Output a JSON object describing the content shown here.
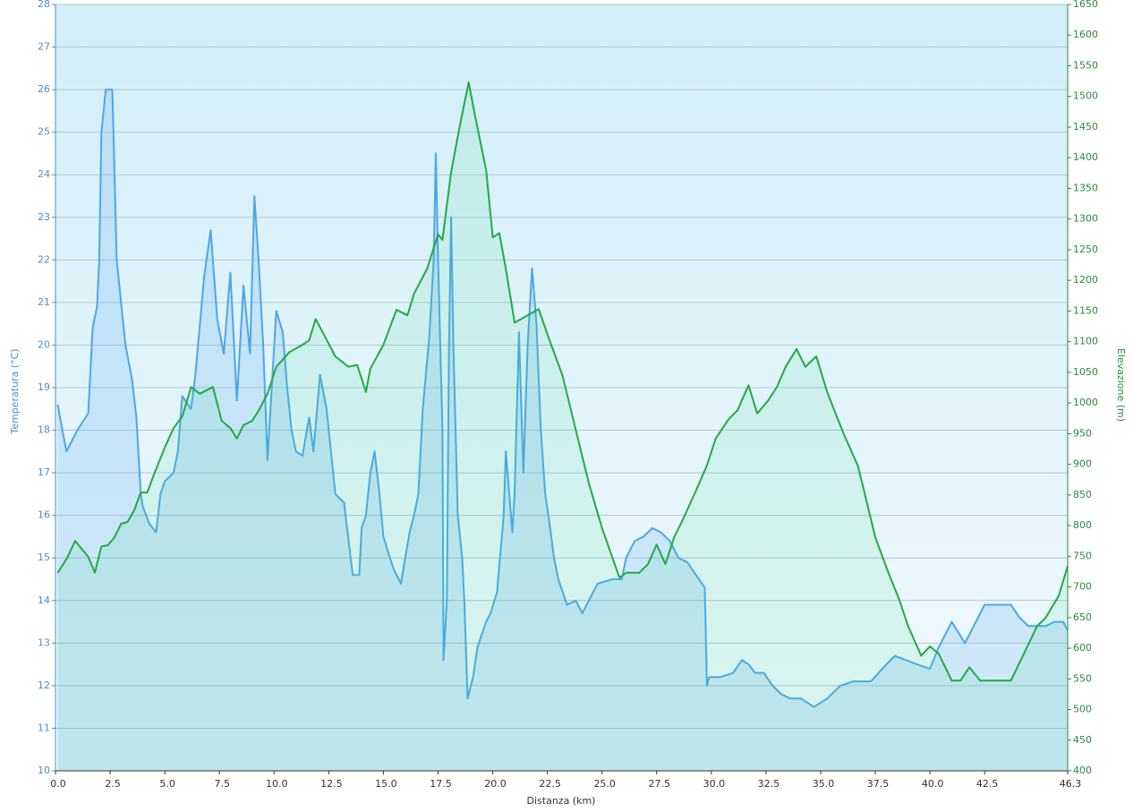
{
  "chart_data": {
    "type": "line",
    "xlabel": "Distanza  (km)",
    "ylabel": "Temperatura (°C)",
    "y2label": "Elevazione (m)",
    "xlim": [
      0,
      46.3
    ],
    "xticks": [
      {
        "value": 0,
        "label": "0.0"
      },
      2.5,
      {
        "value": 5,
        "label": "5.0"
      },
      7.5,
      {
        "value": 10,
        "label": "10.0"
      },
      12.5,
      {
        "value": 15,
        "label": "15.0"
      },
      17.5,
      {
        "value": 20,
        "label": "20.0"
      },
      22.5,
      {
        "value": 25,
        "label": "25.0"
      },
      27.5,
      {
        "value": 30,
        "label": "30.0"
      },
      32.5,
      {
        "value": 35,
        "label": "35.0"
      },
      37.5,
      {
        "value": 40,
        "label": "40.0"
      },
      42.5,
      46.3
    ],
    "ylim": [
      10,
      28
    ],
    "yticks": [
      10,
      11,
      12,
      13,
      14,
      15,
      16,
      17,
      18,
      19,
      20,
      21,
      22,
      23,
      24,
      25,
      26,
      27,
      28
    ],
    "y2lim": [
      400,
      1650
    ],
    "y2ticks": [
      400,
      450,
      500,
      550,
      600,
      650,
      700,
      750,
      800,
      850,
      900,
      950,
      1000,
      1050,
      1100,
      1150,
      1200,
      1250,
      1300,
      1350,
      1400,
      1450,
      1500,
      1550,
      1600,
      1650
    ],
    "grid": true,
    "series": [
      {
        "name": "Temperatura",
        "color": "#4da6e8",
        "fill": "rgba(110,180,240,0.25)",
        "x": [
          0.1,
          0.5,
          1.0,
          1.5,
          1.7,
          1.9,
          2.0,
          2.1,
          2.3,
          2.6,
          2.7,
          2.8,
          3.0,
          3.2,
          3.5,
          3.7,
          3.9,
          4.0,
          4.3,
          4.6,
          4.8,
          5.0,
          5.4,
          5.6,
          5.8,
          6.2,
          6.4,
          6.8,
          7.1,
          7.4,
          7.7,
          8.0,
          8.3,
          8.6,
          8.9,
          9.1,
          9.3,
          9.5,
          9.7,
          10.1,
          10.4,
          10.6,
          10.8,
          11.0,
          11.3,
          11.6,
          11.8,
          12.1,
          12.4,
          12.8,
          13.2,
          13.5,
          13.6,
          13.9,
          14.0,
          14.2,
          14.4,
          14.6,
          14.8,
          15.0,
          15.3,
          15.5,
          15.8,
          16.0,
          16.2,
          16.4,
          16.6,
          16.8,
          17.1,
          17.3,
          17.4,
          17.5,
          17.7,
          17.75,
          17.9,
          18.0,
          18.1,
          18.2,
          18.4,
          18.6,
          18.7,
          18.85,
          19.1,
          19.3,
          19.5,
          19.7,
          19.9,
          20.2,
          20.5,
          20.6,
          20.9,
          21.0,
          21.2,
          21.4,
          21.6,
          21.8,
          22.0,
          22.2,
          22.4,
          22.6,
          22.8,
          23.0,
          23.4,
          23.8,
          24.1,
          24.4,
          24.8,
          25.5,
          25.9,
          26.1,
          26.5,
          26.9,
          27.3,
          27.7,
          28.1,
          28.5,
          28.9,
          29.3,
          29.7,
          29.8,
          29.9,
          30.4,
          31.0,
          31.4,
          31.7,
          32.0,
          32.4,
          32.8,
          33.2,
          33.6,
          34.1,
          34.7,
          35.3,
          35.9,
          36.5,
          37.3,
          38.0,
          38.4,
          39.4,
          40.0,
          40.4,
          41.0,
          41.6,
          42.0,
          42.5,
          43.1,
          43.7,
          44.1,
          44.5,
          44.9,
          45.3,
          45.7,
          46.1,
          46.3
        ],
        "values": [
          18.6,
          17.5,
          18.0,
          18.4,
          20.4,
          20.9,
          22,
          25,
          26,
          26,
          24,
          22,
          21,
          20,
          19.2,
          18.3,
          16.5,
          16.2,
          15.8,
          15.6,
          16.5,
          16.8,
          17,
          17.5,
          18.8,
          18.5,
          19.3,
          21.6,
          22.7,
          20.6,
          19.8,
          21.7,
          18.7,
          21.4,
          19.8,
          23.5,
          21.9,
          20,
          17.3,
          20.8,
          20.3,
          19,
          18,
          17.5,
          17.4,
          18.3,
          17.5,
          19.3,
          18.5,
          16.5,
          16.3,
          15,
          14.6,
          14.6,
          15.7,
          16,
          17,
          17.5,
          16.6,
          15.5,
          15.0,
          14.7,
          14.4,
          15,
          15.6,
          16,
          16.5,
          18.5,
          20.2,
          22,
          24.5,
          22,
          18,
          12.6,
          14,
          20,
          23,
          20,
          16,
          15,
          14,
          11.7,
          12.2,
          12.9,
          13.2,
          13.5,
          13.7,
          14.2,
          16,
          17.5,
          15.6,
          16.5,
          20.3,
          17,
          20,
          21.8,
          20.5,
          18,
          16.5,
          15.8,
          15,
          14.5,
          13.9,
          14,
          13.7,
          14.0,
          14.4,
          14.5,
          14.5,
          15,
          15.4,
          15.5,
          15.7,
          15.6,
          15.4,
          15.0,
          14.9,
          14.6,
          14.3,
          12.0,
          12.2,
          12.2,
          12.3,
          12.6,
          12.5,
          12.3,
          12.3,
          12.0,
          11.8,
          11.7,
          11.7,
          11.5,
          11.7,
          12.0,
          12.1,
          12.1,
          12.5,
          12.7,
          12.5,
          12.4,
          12.9,
          13.5,
          13.0,
          13.4,
          13.9,
          13.9,
          13.9,
          13.6,
          13.4,
          13.4,
          13.4,
          13.5,
          13.5,
          13.3
        ]
      },
      {
        "name": "Elevazione",
        "color": "#22aa44",
        "fill": "rgba(60,210,140,0.12)",
        "axis": "y2",
        "x": [
          0.1,
          0.5,
          0.9,
          1.5,
          1.8,
          2.1,
          2.4,
          2.7,
          3.0,
          3.3,
          3.6,
          3.9,
          4.2,
          4.5,
          5.0,
          5.4,
          5.8,
          6.2,
          6.6,
          7.2,
          7.6,
          8.0,
          8.3,
          8.6,
          9.0,
          9.3,
          9.7,
          10.1,
          10.7,
          11.3,
          11.6,
          11.9,
          12.3,
          12.8,
          13.4,
          13.8,
          14.2,
          14.4,
          15.0,
          15.6,
          16.1,
          16.4,
          17.0,
          17.5,
          17.7,
          18.1,
          18.5,
          18.9,
          19.2,
          19.7,
          20.0,
          20.3,
          20.6,
          21.0,
          21.6,
          22.1,
          22.6,
          23.2,
          23.8,
          24.4,
          25.0,
          25.8,
          26.1,
          26.7,
          27.1,
          27.5,
          27.9,
          28.3,
          28.7,
          29.3,
          29.8,
          30.2,
          30.8,
          31.2,
          31.7,
          32.1,
          32.6,
          33.0,
          33.4,
          33.9,
          34.3,
          34.8,
          35.3,
          35.7,
          36.1,
          36.7,
          37.1,
          37.5,
          38.1,
          38.6,
          39.0,
          39.6,
          40.0,
          40.4,
          41.0,
          41.4,
          41.8,
          42.3,
          43.1,
          43.7,
          44.3,
          44.9,
          45.3,
          45.9,
          46.3
        ],
        "values": [
          723,
          745,
          775,
          749,
          723,
          766,
          768,
          781,
          803,
          806,
          825,
          854,
          854,
          883,
          927,
          959,
          978,
          1026,
          1015,
          1026,
          971,
          959,
          942,
          964,
          971,
          988,
          1015,
          1059,
          1083,
          1095,
          1102,
          1137,
          1110,
          1076,
          1059,
          1062,
          1018,
          1056,
          1095,
          1152,
          1143,
          1178,
          1219,
          1275,
          1266,
          1377,
          1453,
          1523,
          1467,
          1380,
          1270,
          1277,
          1219,
          1131,
          1143,
          1153,
          1102,
          1044,
          956,
          869,
          796,
          715,
          723,
          723,
          737,
          769,
          737,
          781,
          810,
          857,
          898,
          942,
          974,
          988,
          1029,
          983,
          1004,
          1026,
          1059,
          1088,
          1059,
          1076,
          1018,
          981,
          946,
          898,
          840,
          781,
          723,
          679,
          636,
          588,
          603,
          591,
          547,
          547,
          569,
          547,
          547,
          547,
          591,
          636,
          650,
          686,
          734
        ]
      }
    ]
  }
}
